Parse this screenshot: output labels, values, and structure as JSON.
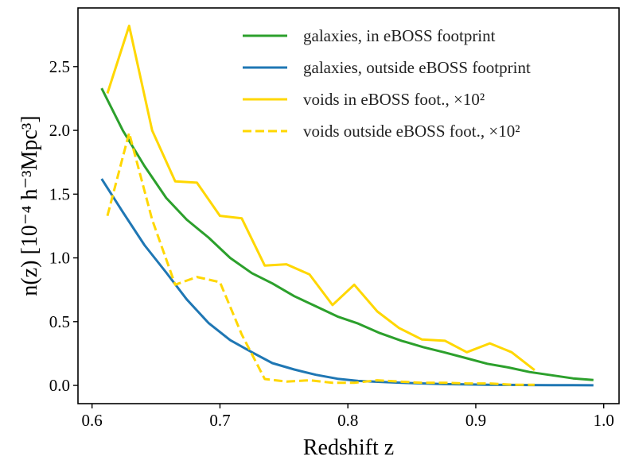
{
  "chart_data": {
    "type": "line",
    "xlabel": "Redshift z",
    "ylabel": "n(z) [10⁻⁴ h⁻³Mpc³]",
    "xlim": [
      0.589,
      1.012
    ],
    "ylim": [
      -0.143,
      2.96
    ],
    "xticks": [
      "0.6",
      "0.7",
      "0.8",
      "0.9",
      "1.0"
    ],
    "yticks": [
      "0.0",
      "0.5",
      "1.0",
      "1.5",
      "2.0",
      "2.5"
    ],
    "grid": false,
    "legend_position": "top-right",
    "series": [
      {
        "name": "galaxies, in eBOSS footprint",
        "color": "#2ca02c",
        "dash": false,
        "x": [
          0.6075,
          0.624,
          0.641,
          0.658,
          0.674,
          0.691,
          0.708,
          0.725,
          0.741,
          0.758,
          0.775,
          0.792,
          0.808,
          0.825,
          0.842,
          0.859,
          0.875,
          0.892,
          0.909,
          0.926,
          0.942,
          0.959,
          0.976,
          0.992
        ],
        "y": [
          2.33,
          2.0,
          1.72,
          1.47,
          1.3,
          1.16,
          1.0,
          0.88,
          0.8,
          0.7,
          0.62,
          0.54,
          0.485,
          0.41,
          0.35,
          0.3,
          0.26,
          0.215,
          0.17,
          0.14,
          0.105,
          0.08,
          0.055,
          0.042
        ]
      },
      {
        "name": "galaxies, outside eBOSS footprint",
        "color": "#1f77b4",
        "dash": false,
        "x": [
          0.6075,
          0.624,
          0.641,
          0.658,
          0.674,
          0.691,
          0.708,
          0.725,
          0.741,
          0.758,
          0.775,
          0.792,
          0.808,
          0.825,
          0.842,
          0.859,
          0.875,
          0.892,
          0.909,
          0.926,
          0.942,
          0.959,
          0.976,
          0.992
        ],
        "y": [
          1.62,
          1.36,
          1.1,
          0.885,
          0.675,
          0.49,
          0.355,
          0.26,
          0.175,
          0.125,
          0.083,
          0.052,
          0.035,
          0.028,
          0.02,
          0.015,
          0.01,
          0.008,
          0.005,
          0.004,
          0.003,
          0.002,
          0.002,
          0.001
        ]
      },
      {
        "name": "voids in eBOSS foot., ×10²",
        "color": "#ffd700",
        "dash": false,
        "x": [
          0.612,
          0.629,
          0.647,
          0.665,
          0.682,
          0.7,
          0.717,
          0.735,
          0.752,
          0.77,
          0.788,
          0.805,
          0.823,
          0.84,
          0.858,
          0.876,
          0.893,
          0.911,
          0.928,
          0.946
        ],
        "y": [
          2.29,
          2.82,
          2.0,
          1.6,
          1.59,
          1.33,
          1.31,
          0.94,
          0.95,
          0.87,
          0.63,
          0.79,
          0.58,
          0.45,
          0.36,
          0.35,
          0.26,
          0.33,
          0.26,
          0.12
        ]
      },
      {
        "name": "voids outside eBOSS foot., ×10²",
        "color": "#ffd700",
        "dash": true,
        "x": [
          0.612,
          0.629,
          0.647,
          0.665,
          0.682,
          0.7,
          0.717,
          0.735,
          0.752,
          0.77,
          0.788,
          0.805,
          0.823,
          0.84,
          0.858,
          0.876,
          0.893,
          0.911,
          0.928,
          0.946
        ],
        "y": [
          1.33,
          1.98,
          1.3,
          0.79,
          0.85,
          0.81,
          0.4,
          0.05,
          0.03,
          0.04,
          0.02,
          0.02,
          0.04,
          0.03,
          0.02,
          0.02,
          0.015,
          0.015,
          0.005,
          0.005
        ]
      }
    ]
  }
}
